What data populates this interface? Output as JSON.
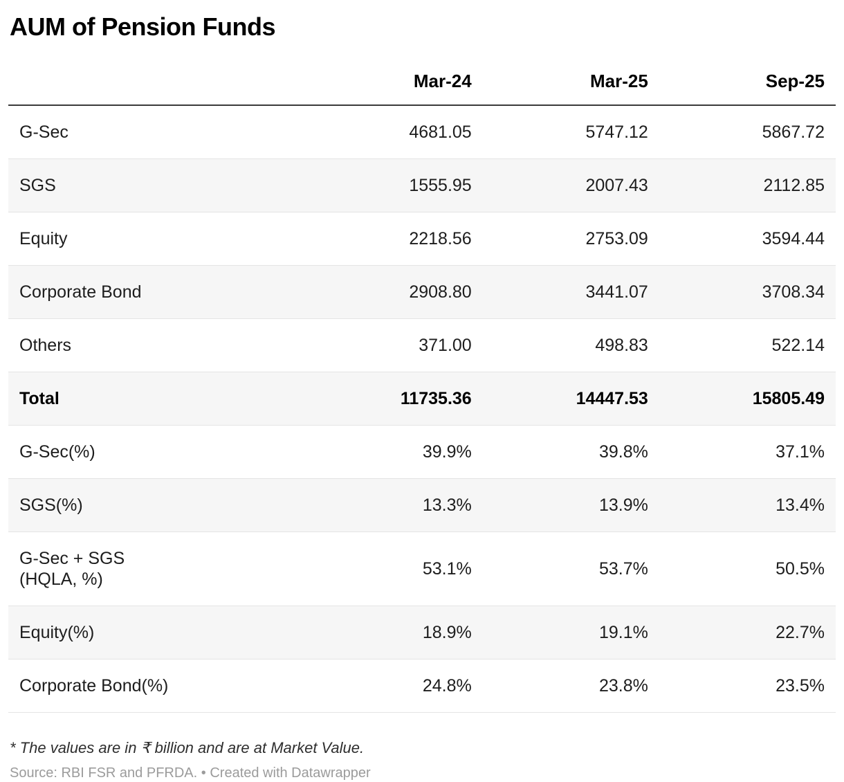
{
  "title": "AUM of Pension Funds",
  "chart_data": {
    "type": "table",
    "title": "AUM of Pension Funds",
    "columns": [
      "",
      "Mar-24",
      "Mar-25",
      "Sep-25"
    ],
    "rows": [
      {
        "label": "G-Sec",
        "values": [
          "4681.05",
          "5747.12",
          "5867.72"
        ],
        "bold": false
      },
      {
        "label": "SGS",
        "values": [
          "1555.95",
          "2007.43",
          "2112.85"
        ],
        "bold": false
      },
      {
        "label": "Equity",
        "values": [
          "2218.56",
          "2753.09",
          "3594.44"
        ],
        "bold": false
      },
      {
        "label": "Corporate Bond",
        "values": [
          "2908.80",
          "3441.07",
          "3708.34"
        ],
        "bold": false
      },
      {
        "label": "Others",
        "values": [
          "371.00",
          "498.83",
          "522.14"
        ],
        "bold": false
      },
      {
        "label": "Total",
        "values": [
          "11735.36",
          "14447.53",
          "15805.49"
        ],
        "bold": true
      },
      {
        "label": "G-Sec(%)",
        "values": [
          "39.9%",
          "39.8%",
          "37.1%"
        ],
        "bold": false
      },
      {
        "label": "SGS(%)",
        "values": [
          "13.3%",
          "13.9%",
          "13.4%"
        ],
        "bold": false
      },
      {
        "label": "G-Sec + SGS\n(HQLA, %)",
        "values": [
          "53.1%",
          "53.7%",
          "50.5%"
        ],
        "bold": false
      },
      {
        "label": "Equity(%)",
        "values": [
          "18.9%",
          "19.1%",
          "22.7%"
        ],
        "bold": false
      },
      {
        "label": "Corporate Bond(%)",
        "values": [
          "24.8%",
          "23.8%",
          "23.5%"
        ],
        "bold": false
      }
    ],
    "notes": "* The values are in ₹ billion and are at Market Value."
  },
  "footnote": "* The values are in ₹ billion and are at Market Value.",
  "source": {
    "label": "Source: RBI FSR and PFRDA.",
    "separator": "•",
    "attribution": "Created with Datawrapper"
  }
}
